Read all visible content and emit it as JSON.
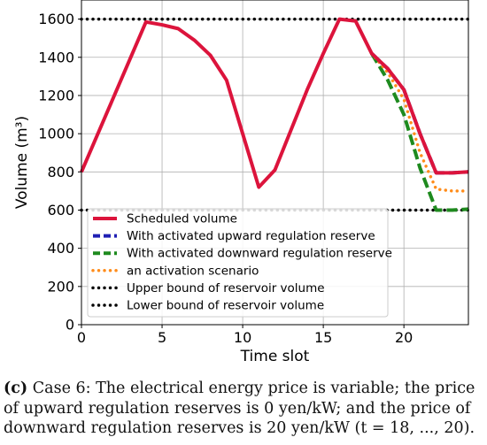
{
  "caption": {
    "label": "(c)",
    "text": "Case 6: The electrical energy price is variable; the price of upward regulation reserves is 0 yen/kW; and the price of downward regulation reserves is 20 yen/kW (t = 18, ..., 20)."
  },
  "chart_data": {
    "type": "line",
    "title": "",
    "xlabel": "Time slot",
    "ylabel": "Volume (m³)",
    "xlim": [
      0,
      24
    ],
    "ylim": [
      0,
      1700
    ],
    "xticks": [
      0,
      5,
      10,
      15,
      20
    ],
    "yticks": [
      0,
      200,
      400,
      600,
      800,
      1000,
      1200,
      1400,
      1600
    ],
    "grid": true,
    "legend_position": "lower-left",
    "series": [
      {
        "name": "Scheduled volume",
        "color": "#dc143c",
        "style": "solid",
        "x": [
          0,
          4,
          5,
          6,
          7,
          8,
          9,
          10,
          11,
          12,
          13,
          14,
          15,
          16,
          17,
          18,
          19,
          20,
          21,
          22,
          23,
          24
        ],
        "y": [
          800,
          1585,
          1570,
          1550,
          1490,
          1410,
          1280,
          1000,
          720,
          810,
          1020,
          1230,
          1420,
          1600,
          1590,
          1420,
          1340,
          1230,
          1000,
          795,
          795,
          800
        ]
      },
      {
        "name": "With activated upward regulation reserve",
        "color": "#1f1fb4",
        "style": "dashed",
        "x": [
          18,
          19,
          20,
          21,
          22,
          23,
          24
        ],
        "y": [
          1420,
          1340,
          1230,
          1000,
          795,
          795,
          800
        ]
      },
      {
        "name": "With activated downward regulation reserve",
        "color": "#1e8a1e",
        "style": "dashed",
        "x": [
          18,
          19,
          20,
          21,
          22,
          23,
          24
        ],
        "y": [
          1420,
          1280,
          1100,
          820,
          600,
          600,
          605
        ]
      },
      {
        "name": "an activation scenario",
        "color": "#ff8c1a",
        "style": "dotted",
        "x": [
          18,
          19,
          20,
          21,
          22,
          23,
          24
        ],
        "y": [
          1420,
          1320,
          1180,
          900,
          710,
          700,
          700
        ]
      },
      {
        "name": "Upper bound of reservoir volume",
        "color": "#000000",
        "style": "dotted",
        "x": [
          0,
          24
        ],
        "y": [
          1600,
          1600
        ]
      },
      {
        "name": "Lower bound of reservoir volume",
        "color": "#000000",
        "style": "dotted",
        "x": [
          0,
          24
        ],
        "y": [
          600,
          600
        ]
      }
    ]
  }
}
